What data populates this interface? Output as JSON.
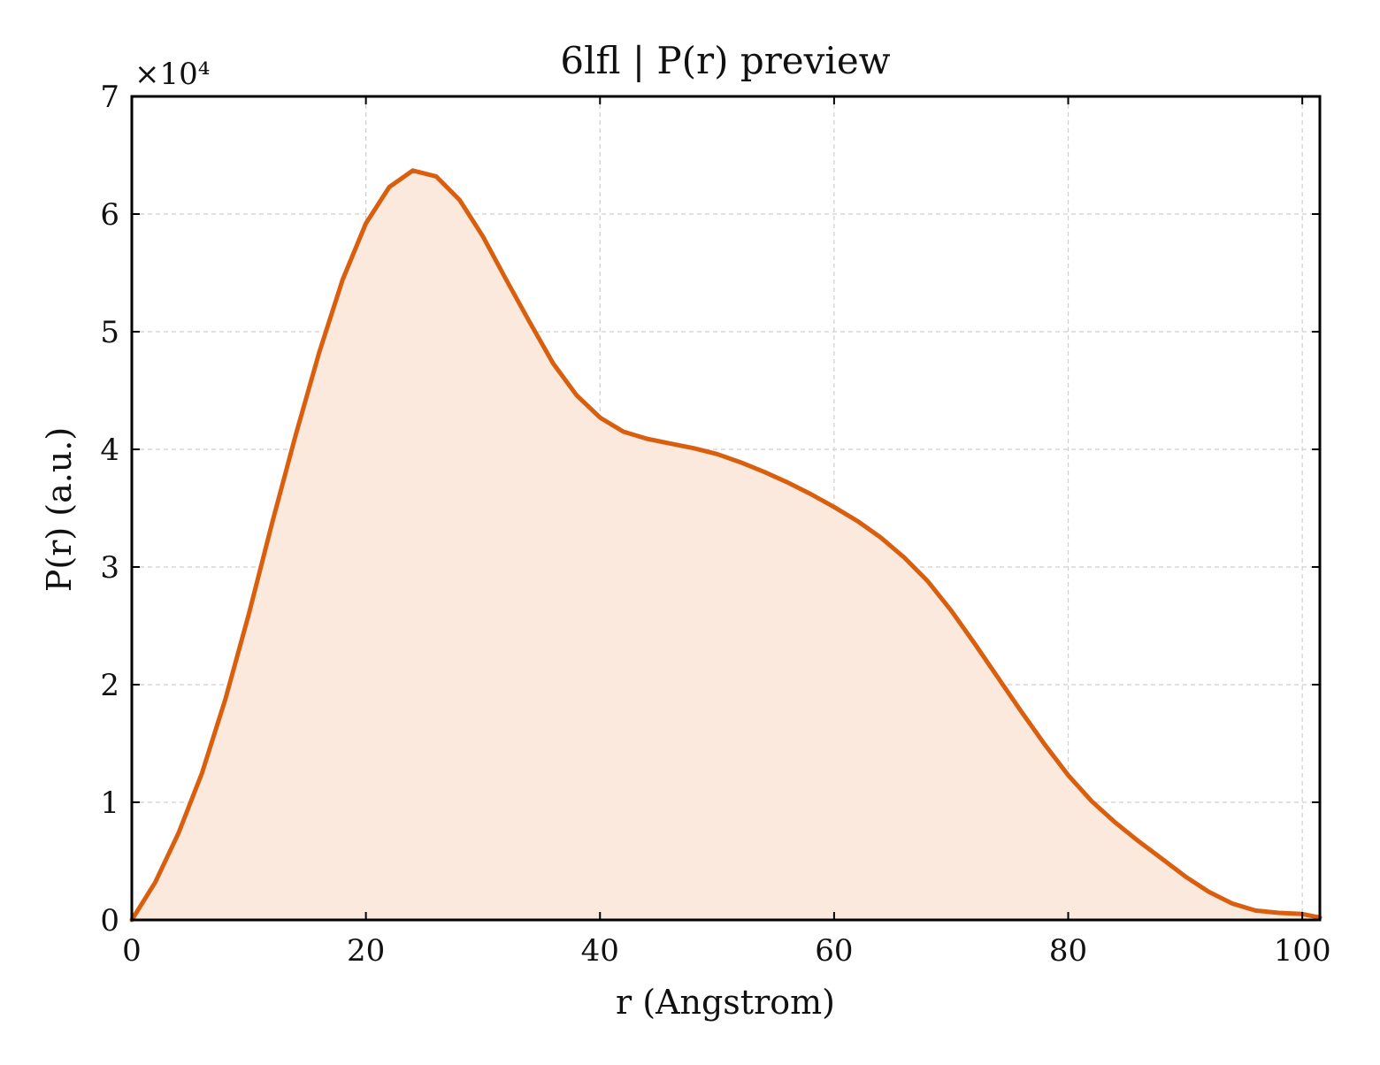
{
  "chart_data": {
    "type": "area",
    "title": "6lfl | P(r) preview",
    "xlabel": "r (Angstrom)",
    "ylabel": "P(r) (a.u.)",
    "y_multiplier_label": "×10⁴",
    "xlim": [
      0,
      101.5
    ],
    "ylim": [
      0,
      7
    ],
    "x_ticks": [
      0,
      20,
      40,
      60,
      80,
      100
    ],
    "y_ticks": [
      0,
      1,
      2,
      3,
      4,
      5,
      6,
      7
    ],
    "grid": true,
    "legend": "none",
    "series": [
      {
        "x": [
          0,
          2,
          4,
          6,
          8,
          10,
          12,
          14,
          16,
          18,
          20,
          22,
          24,
          26,
          28,
          30,
          32,
          34,
          36,
          38,
          40,
          42,
          44,
          46,
          48,
          50,
          52,
          54,
          56,
          58,
          60,
          62,
          64,
          66,
          68,
          70,
          72,
          74,
          76,
          78,
          80,
          82,
          84,
          86,
          88,
          90,
          92,
          94,
          96,
          98,
          100,
          101.5
        ],
        "y": [
          0,
          0.32,
          0.74,
          1.25,
          1.88,
          2.6,
          3.38,
          4.12,
          4.82,
          5.44,
          5.92,
          6.23,
          6.37,
          6.32,
          6.12,
          5.81,
          5.44,
          5.08,
          4.73,
          4.46,
          4.27,
          4.15,
          4.09,
          4.05,
          4.01,
          3.96,
          3.89,
          3.81,
          3.72,
          3.62,
          3.51,
          3.39,
          3.25,
          3.08,
          2.88,
          2.63,
          2.35,
          2.06,
          1.77,
          1.49,
          1.23,
          1.01,
          0.83,
          0.67,
          0.52,
          0.37,
          0.24,
          0.14,
          0.08,
          0.06,
          0.05,
          0.02
        ],
        "color": "#d95f0e",
        "fill_color": "#fbe9de"
      }
    ]
  }
}
